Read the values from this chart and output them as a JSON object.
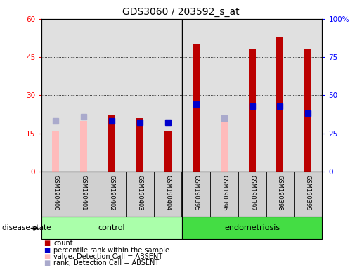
{
  "title": "GDS3060 / 203592_s_at",
  "samples": [
    "GSM190400",
    "GSM190401",
    "GSM190402",
    "GSM190403",
    "GSM190404",
    "GSM190395",
    "GSM190396",
    "GSM190397",
    "GSM190398",
    "GSM190399"
  ],
  "groups": [
    "control",
    "control",
    "control",
    "control",
    "control",
    "endometriosis",
    "endometriosis",
    "endometriosis",
    "endometriosis",
    "endometriosis"
  ],
  "bar_values": [
    null,
    null,
    22,
    21,
    16,
    50,
    null,
    48,
    53,
    48
  ],
  "bar_absent_values": [
    16,
    20,
    null,
    null,
    null,
    null,
    20,
    null,
    null,
    null
  ],
  "percentile_rank": [
    null,
    null,
    33,
    32,
    32,
    44,
    null,
    43,
    43,
    38
  ],
  "percentile_rank_absent": [
    33,
    36,
    null,
    null,
    null,
    null,
    35,
    null,
    null,
    null
  ],
  "ylim_left": [
    0,
    60
  ],
  "ylim_right": [
    0,
    100
  ],
  "yticks_left": [
    0,
    15,
    30,
    45,
    60
  ],
  "yticks_right": [
    0,
    25,
    50,
    75,
    100
  ],
  "ytick_labels_left": [
    "0",
    "15",
    "30",
    "45",
    "60"
  ],
  "ytick_labels_right": [
    "0",
    "25",
    "50",
    "75",
    "100%"
  ],
  "bar_color": "#bb0000",
  "bar_absent_color": "#ffbbbb",
  "rank_color": "#0000cc",
  "rank_absent_color": "#aaaacc",
  "bg_color": "#e0e0e0",
  "sample_bg_color": "#d0d0d0",
  "control_group_color": "#aaffaa",
  "endometriosis_group_color": "#44dd44",
  "group_label_control": "control",
  "group_label_endometriosis": "endometriosis",
  "disease_state_label": "disease state",
  "legend_items": [
    {
      "color": "#bb0000",
      "label": "count"
    },
    {
      "color": "#0000cc",
      "label": "percentile rank within the sample"
    },
    {
      "color": "#ffbbbb",
      "label": "value, Detection Call = ABSENT"
    },
    {
      "color": "#aaaacc",
      "label": "rank, Detection Call = ABSENT"
    }
  ],
  "group_divider_index": 4.5,
  "bar_width": 0.25,
  "rank_marker_size": 6,
  "n_samples": 10
}
